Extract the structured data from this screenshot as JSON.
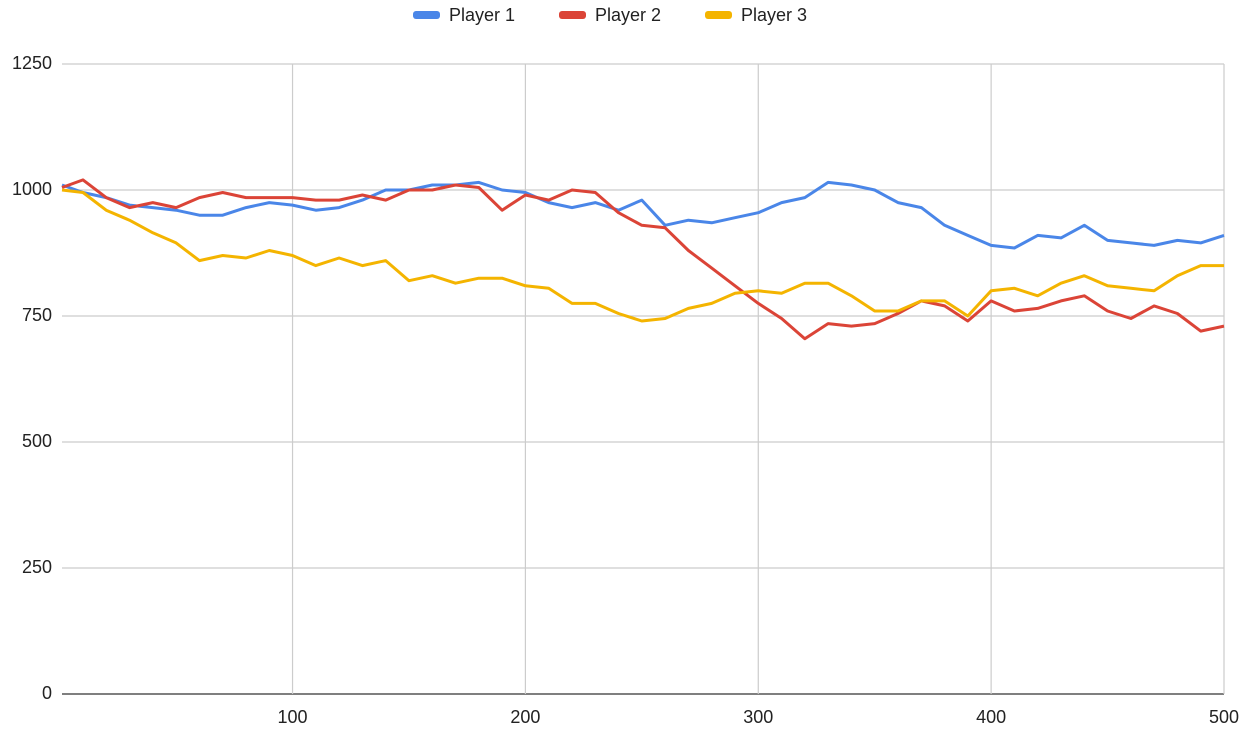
{
  "chart_data": {
    "type": "line",
    "x": [
      1,
      10,
      20,
      30,
      40,
      50,
      60,
      70,
      80,
      90,
      100,
      110,
      120,
      130,
      140,
      150,
      160,
      170,
      180,
      190,
      200,
      210,
      220,
      230,
      240,
      250,
      260,
      270,
      280,
      290,
      300,
      310,
      320,
      330,
      340,
      350,
      360,
      370,
      380,
      390,
      400,
      410,
      420,
      430,
      440,
      450,
      460,
      470,
      480,
      490,
      500
    ],
    "series": [
      {
        "name": "Player 1",
        "color": "#4a86e8",
        "values": [
          1010,
          995,
          985,
          970,
          965,
          960,
          950,
          950,
          965,
          975,
          970,
          960,
          965,
          980,
          1000,
          1000,
          1010,
          1010,
          1015,
          1000,
          995,
          975,
          965,
          975,
          960,
          980,
          930,
          940,
          935,
          945,
          955,
          975,
          985,
          1015,
          1010,
          1000,
          975,
          965,
          930,
          910,
          890,
          885,
          910,
          905,
          930,
          900,
          895,
          890,
          900,
          895,
          910
        ]
      },
      {
        "name": "Player 2",
        "color": "#db4437",
        "values": [
          1005,
          1020,
          985,
          965,
          975,
          965,
          985,
          995,
          985,
          985,
          985,
          980,
          980,
          990,
          980,
          1000,
          1000,
          1010,
          1005,
          960,
          990,
          980,
          1000,
          995,
          955,
          930,
          925,
          880,
          845,
          810,
          775,
          745,
          705,
          735,
          730,
          735,
          755,
          780,
          770,
          740,
          780,
          760,
          765,
          780,
          790,
          760,
          745,
          770,
          755,
          720,
          730
        ]
      },
      {
        "name": "Player 3",
        "color": "#f4b400",
        "values": [
          1000,
          995,
          960,
          940,
          915,
          895,
          860,
          870,
          865,
          880,
          870,
          850,
          865,
          850,
          860,
          820,
          830,
          815,
          825,
          825,
          810,
          805,
          775,
          775,
          755,
          740,
          745,
          765,
          775,
          795,
          800,
          795,
          815,
          815,
          790,
          760,
          760,
          780,
          780,
          750,
          800,
          805,
          790,
          815,
          830,
          810,
          805,
          800,
          830,
          850,
          850
        ]
      }
    ],
    "xlim": [
      1,
      500
    ],
    "xticks": [
      100,
      200,
      300,
      400,
      500
    ],
    "ylim": [
      0,
      1250
    ],
    "yticks": [
      0,
      250,
      500,
      750,
      1000,
      1250
    ],
    "grid": true,
    "legend": "top"
  }
}
